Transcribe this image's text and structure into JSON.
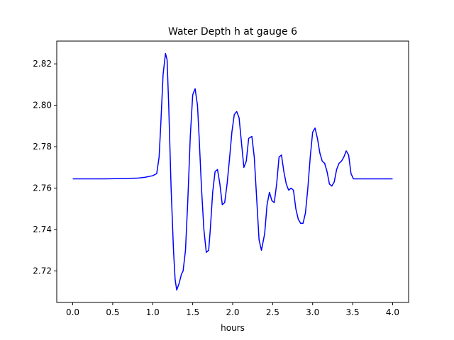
{
  "chart_data": {
    "type": "line",
    "title": "Water Depth h at gauge 6",
    "xlabel": "hours",
    "ylabel": "",
    "xlim": [
      -0.2,
      4.2
    ],
    "ylim": [
      2.7048,
      2.831
    ],
    "xticks": [
      0.0,
      0.5,
      1.0,
      1.5,
      2.0,
      2.5,
      3.0,
      3.5,
      4.0
    ],
    "xtick_labels": [
      "0.0",
      "0.5",
      "1.0",
      "1.5",
      "2.0",
      "2.5",
      "3.0",
      "3.5",
      "4.0"
    ],
    "yticks": [
      2.72,
      2.74,
      2.76,
      2.78,
      2.8,
      2.82
    ],
    "ytick_labels": [
      "2.72",
      "2.74",
      "2.76",
      "2.78",
      "2.80",
      "2.82"
    ],
    "grid": false,
    "series": [
      {
        "color": "#0000ff",
        "x": [
          0.0,
          0.2,
          0.4,
          0.6,
          0.8,
          0.9,
          1.0,
          1.05,
          1.08,
          1.1,
          1.13,
          1.16,
          1.18,
          1.2,
          1.23,
          1.26,
          1.28,
          1.3,
          1.33,
          1.36,
          1.38,
          1.41,
          1.44,
          1.47,
          1.5,
          1.53,
          1.56,
          1.58,
          1.61,
          1.64,
          1.67,
          1.7,
          1.72,
          1.75,
          1.78,
          1.81,
          1.84,
          1.87,
          1.9,
          1.93,
          1.96,
          1.99,
          2.02,
          2.05,
          2.08,
          2.11,
          2.14,
          2.17,
          2.2,
          2.24,
          2.27,
          2.3,
          2.33,
          2.36,
          2.4,
          2.43,
          2.46,
          2.49,
          2.52,
          2.55,
          2.58,
          2.61,
          2.64,
          2.67,
          2.7,
          2.73,
          2.76,
          2.79,
          2.82,
          2.85,
          2.88,
          2.91,
          2.94,
          2.97,
          3.0,
          3.03,
          3.06,
          3.09,
          3.12,
          3.15,
          3.18,
          3.21,
          3.24,
          3.27,
          3.3,
          3.33,
          3.36,
          3.39,
          3.42,
          3.45,
          3.48,
          3.51,
          3.54,
          3.57,
          3.6,
          3.63,
          3.66,
          3.7,
          3.74,
          3.78,
          3.82,
          3.86,
          3.9,
          3.93,
          3.96,
          3.99,
          4.0
        ],
        "values": [
          2.7645,
          2.7645,
          2.7645,
          2.7646,
          2.7648,
          2.7652,
          2.766,
          2.767,
          2.775,
          2.79,
          2.815,
          2.825,
          2.822,
          2.8,
          2.76,
          2.73,
          2.716,
          2.7108,
          2.714,
          2.7185,
          2.72,
          2.73,
          2.755,
          2.785,
          2.805,
          2.808,
          2.8,
          2.785,
          2.76,
          2.74,
          2.729,
          2.73,
          2.74,
          2.758,
          2.768,
          2.769,
          2.762,
          2.752,
          2.753,
          2.762,
          2.774,
          2.787,
          2.7955,
          2.797,
          2.794,
          2.782,
          2.77,
          2.773,
          2.784,
          2.785,
          2.775,
          2.755,
          2.735,
          2.73,
          2.738,
          2.752,
          2.758,
          2.754,
          2.753,
          2.762,
          2.775,
          2.776,
          2.768,
          2.762,
          2.759,
          2.76,
          2.759,
          2.75,
          2.745,
          2.743,
          2.743,
          2.748,
          2.76,
          2.775,
          2.787,
          2.789,
          2.784,
          2.777,
          2.773,
          2.772,
          2.768,
          2.762,
          2.761,
          2.763,
          2.769,
          2.772,
          2.773,
          2.775,
          2.778,
          2.776,
          2.767,
          2.7645,
          2.7645,
          2.7645,
          2.7645,
          2.7645,
          2.7645,
          2.7645,
          2.7645,
          2.7645,
          2.7645,
          2.7645,
          2.7645,
          2.7645,
          2.7645,
          2.7645,
          2.7645
        ]
      }
    ]
  }
}
